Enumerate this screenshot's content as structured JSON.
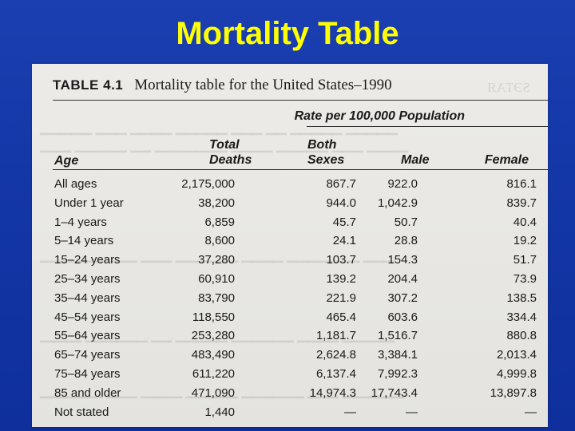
{
  "slide": {
    "title": "Mortality Table"
  },
  "table": {
    "number": "TABLE 4.1",
    "caption": "Mortality table for the United States–1990",
    "group_header": "Rate per 100,000 Population",
    "columns": {
      "age": "Age",
      "total_deaths": [
        "Total",
        "Deaths"
      ],
      "both_sexes": [
        "Both",
        "Sexes"
      ],
      "male": "Male",
      "female": "Female"
    },
    "rows": [
      {
        "age": "All ages",
        "total": "2,175,000",
        "both": "867.7",
        "male": "922.0",
        "female": "816.1"
      },
      {
        "age": "Under 1 year",
        "total": "38,200",
        "both": "944.0",
        "male": "1,042.9",
        "female": "839.7"
      },
      {
        "age": "1–4 years",
        "total": "6,859",
        "both": "45.7",
        "male": "50.7",
        "female": "40.4"
      },
      {
        "age": "5–14 years",
        "total": "8,600",
        "both": "24.1",
        "male": "28.8",
        "female": "19.2"
      },
      {
        "age": "15–24 years",
        "total": "37,280",
        "both": "103.7",
        "male": "154.3",
        "female": "51.7"
      },
      {
        "age": "25–34 years",
        "total": "60,910",
        "both": "139.2",
        "male": "204.4",
        "female": "73.9"
      },
      {
        "age": "35–44 years",
        "total": "83,790",
        "both": "221.9",
        "male": "307.2",
        "female": "138.5"
      },
      {
        "age": "45–54 years",
        "total": "118,550",
        "both": "465.4",
        "male": "603.6",
        "female": "334.4"
      },
      {
        "age": "55–64 years",
        "total": "253,280",
        "both": "1,181.7",
        "male": "1,516.7",
        "female": "880.8"
      },
      {
        "age": "65–74 years",
        "total": "483,490",
        "both": "2,624.8",
        "male": "3,384.1",
        "female": "2,013.4"
      },
      {
        "age": "75–84 years",
        "total": "611,220",
        "both": "6,137.4",
        "male": "7,992.3",
        "female": "4,999.8"
      },
      {
        "age": "85 and older",
        "total": "471,090",
        "both": "14,974.3",
        "male": "17,743.4",
        "female": "13,897.8"
      },
      {
        "age": "Not stated",
        "total": "1,440",
        "both": "—",
        "male": "—",
        "female": "—"
      }
    ]
  }
}
